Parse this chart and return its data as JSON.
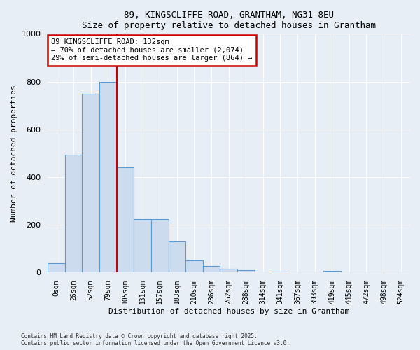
{
  "title": "89, KINGSCLIFFE ROAD, GRANTHAM, NG31 8EU",
  "subtitle": "Size of property relative to detached houses in Grantham",
  "xlabel": "Distribution of detached houses by size in Grantham",
  "ylabel": "Number of detached properties",
  "categories": [
    "0sqm",
    "26sqm",
    "52sqm",
    "79sqm",
    "105sqm",
    "131sqm",
    "157sqm",
    "183sqm",
    "210sqm",
    "236sqm",
    "262sqm",
    "288sqm",
    "314sqm",
    "341sqm",
    "367sqm",
    "393sqm",
    "419sqm",
    "445sqm",
    "472sqm",
    "498sqm",
    "524sqm"
  ],
  "values": [
    40,
    495,
    750,
    800,
    440,
    225,
    225,
    130,
    50,
    27,
    15,
    9,
    0,
    5,
    0,
    0,
    7,
    0,
    0,
    0,
    0
  ],
  "bar_color": "#ccdcee",
  "bar_edge_color": "#5b9bd5",
  "annotation_text": "89 KINGSCLIFFE ROAD: 132sqm\n← 70% of detached houses are smaller (2,074)\n29% of semi-detached houses are larger (864) →",
  "annotation_box_color": "#ffffff",
  "annotation_box_edge_color": "#cc0000",
  "vline_color": "#cc0000",
  "background_color": "#e8eef5",
  "grid_color": "#ffffff",
  "ylim": [
    0,
    1000
  ],
  "vline_x": 3.5,
  "footer": "Contains HM Land Registry data © Crown copyright and database right 2025.\nContains public sector information licensed under the Open Government Licence v3.0."
}
